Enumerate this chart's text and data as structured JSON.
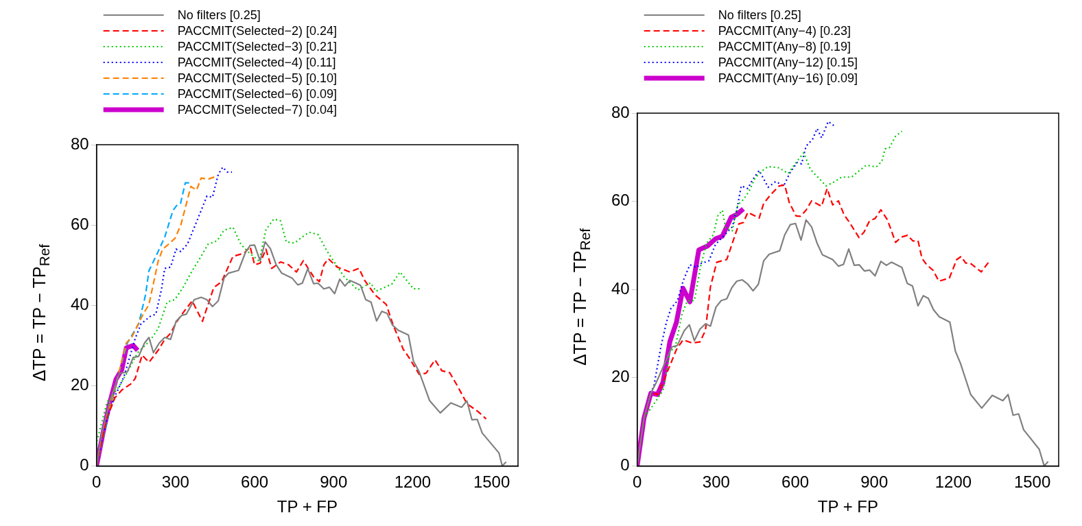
{
  "chart_data": [
    {
      "type": "line",
      "xlabel": "TP + FP",
      "ylabel": "ΔTP = TP − TP$_{Ref}$",
      "xlim": [
        0,
        1600
      ],
      "xticks": [
        0,
        300,
        600,
        900,
        1200,
        1500
      ],
      "ylim": [
        0,
        80
      ],
      "yticks": [
        0,
        20,
        40,
        60,
        80
      ],
      "grid": false,
      "legend": "top left",
      "series": [
        {
          "name": "No filters [0.25]",
          "color": "#808080",
          "line_style": "solid",
          "x": [
            0,
            20,
            50,
            86,
            117,
            139,
            160,
            182,
            199,
            216,
            238,
            259,
            281,
            302,
            324,
            341,
            371,
            397,
            419,
            440,
            462,
            484,
            501,
            539,
            565,
            583,
            600,
            621,
            640,
            660,
            682,
            703,
            742,
            764,
            781,
            802,
            824,
            841,
            863,
            884,
            904,
            923,
            943,
            962,
            983,
            1002,
            1022,
            1042,
            1063,
            1083,
            1103,
            1123,
            1145,
            1184,
            1203,
            1225,
            1264,
            1305,
            1345,
            1386,
            1406,
            1425,
            1445,
            1464,
            1528,
            1540,
            1555
          ],
          "values": [
            0,
            8,
            16,
            23,
            23.4,
            27,
            27.3,
            30.6,
            32,
            28.2,
            30.6,
            32,
            31.5,
            36,
            37.5,
            37.8,
            41.4,
            42,
            41.4,
            39.7,
            41.1,
            46.8,
            48,
            48.7,
            53.1,
            54.9,
            55,
            51.1,
            55.8,
            54.1,
            50.1,
            48,
            46.8,
            45.1,
            45.5,
            49.1,
            45.4,
            45.5,
            44.1,
            44.5,
            42.9,
            46.5,
            44.8,
            46.2,
            45.6,
            45,
            41.4,
            40.8,
            36.1,
            38.5,
            38,
            35.1,
            33.8,
            32.6,
            26.1,
            23.4,
            16.3,
            13.2,
            15.7,
            14.6,
            16.2,
            11.5,
            11.6,
            8.2,
            3.2,
            0,
            1
          ]
        },
        {
          "name": "PACCMIT(Selected−2) [0.24]",
          "color": "#ff0000",
          "line_style": "dashed",
          "x": [
            0,
            40,
            70,
            96,
            130,
            147,
            173,
            199,
            234,
            259,
            281,
            302,
            328,
            363,
            402,
            445,
            475,
            518,
            561,
            583,
            600,
            621,
            643,
            665,
            699,
            729,
            759,
            785,
            824,
            846,
            863,
            880,
            914,
            962,
            996,
            1018,
            1057,
            1100,
            1126,
            1164,
            1186,
            1225,
            1251,
            1285,
            1311,
            1341,
            1371,
            1406,
            1449,
            1479
          ],
          "values": [
            0,
            12,
            17,
            18.9,
            20.4,
            21.8,
            27.6,
            25.8,
            28.8,
            31.5,
            33,
            35.7,
            38.1,
            41.1,
            36,
            44.4,
            45.9,
            52.2,
            53,
            54.6,
            50.1,
            50.5,
            54,
            49.2,
            50.8,
            50.1,
            48.3,
            51.1,
            47.1,
            45.9,
            50.1,
            51.6,
            49.5,
            48.3,
            49.2,
            46.2,
            42.6,
            40.2,
            35.1,
            29.1,
            27,
            22.8,
            23.1,
            26.4,
            23.7,
            23.2,
            19.8,
            15.5,
            13.5,
            11.7
          ]
        },
        {
          "name": "PACCMIT(Selected−3) [0.21]",
          "color": "#00cc00",
          "line_style": "dotted",
          "x": [
            0,
            1,
            40,
            86,
            117,
            156,
            203,
            234,
            268,
            297,
            328,
            363,
            397,
            423,
            458,
            484,
            518,
            548,
            574,
            617,
            643,
            673,
            699,
            720,
            751,
            781,
            807,
            841,
            876,
            897,
            940,
            992,
            1040,
            1061,
            1121,
            1152,
            1203,
            1229
          ],
          "values": [
            0,
            6,
            15.9,
            19.8,
            23.4,
            28.2,
            31.2,
            34.2,
            40.8,
            41.4,
            44.4,
            48.6,
            52.2,
            55.2,
            56.1,
            58.7,
            59.4,
            55.2,
            53.4,
            51,
            58.8,
            61.5,
            61,
            55.8,
            55.5,
            57,
            58.2,
            57.6,
            53.4,
            51.3,
            47.1,
            43.8,
            45.6,
            43.5,
            45.3,
            48.3,
            44.1,
            44.1
          ]
        },
        {
          "name": "PACCMIT(Selected−4) [0.11]",
          "color": "#0000ff",
          "line_style": "dotted",
          "x": [
            0,
            40,
            70,
            104,
            147,
            169,
            203,
            225,
            246,
            259,
            281,
            302,
            319,
            345,
            371,
            397,
            419,
            440,
            462,
            479,
            496,
            514
          ],
          "values": [
            0,
            12,
            17.4,
            22.2,
            31.8,
            35.4,
            37.2,
            37.8,
            43.8,
            49.2,
            49.5,
            54,
            53.4,
            55.2,
            59.4,
            63.6,
            67.2,
            66.9,
            72.6,
            74.4,
            73.2,
            73.2
          ]
        },
        {
          "name": "PACCMIT(Selected−5) [0.10]",
          "color": "#ff8000",
          "line_style": "dashed",
          "x": [
            0,
            40,
            80,
            113,
            134,
            177,
            199,
            234,
            251,
            268,
            298,
            320,
            358,
            380,
            397,
            423,
            449
          ],
          "values": [
            0,
            12,
            22,
            30.6,
            32.1,
            37.8,
            40.2,
            51,
            54,
            54.9,
            56.7,
            60,
            69.6,
            68.7,
            71.7,
            71.4,
            72
          ]
        },
        {
          "name": "PACCMIT(Selected−6) [0.09]",
          "color": "#00aaff",
          "line_style": "dashed",
          "x": [
            0,
            80,
            117,
            160,
            186,
            199,
            234,
            259,
            290,
            307,
            319,
            337,
            354
          ],
          "values": [
            0,
            22,
            30.6,
            35.4,
            42.6,
            48.6,
            53.4,
            57,
            63.6,
            65.1,
            65.4,
            70.5,
            70.5
          ]
        },
        {
          "name": "PACCMIT(Selected−7) [0.04]",
          "color": "#cc00cc",
          "line_style": "solid",
          "x": [
            0,
            27,
            52,
            74,
            96,
            113,
            139,
            156
          ],
          "values": [
            0,
            9,
            16.2,
            21.6,
            24,
            29.4,
            30,
            28.8
          ]
        }
      ]
    },
    {
      "type": "line",
      "xlabel": "TP + FP",
      "ylabel": "ΔTP = TP − TP$_{Ref}$",
      "xlim": [
        0,
        1600
      ],
      "xticks": [
        0,
        300,
        600,
        900,
        1200,
        1500
      ],
      "ylim": [
        0,
        80
      ],
      "yticks": [
        0,
        20,
        40,
        60,
        80
      ],
      "grid": false,
      "legend": "top left",
      "series": [
        {
          "name": "No filters [0.25]",
          "color": "#808080",
          "line_style": "solid",
          "x": [
            0,
            26,
            52,
            73,
            132,
            152,
            179,
            198,
            217,
            238,
            259,
            278,
            299,
            319,
            340,
            359,
            378,
            399,
            420,
            440,
            460,
            480,
            501,
            541,
            560,
            581,
            601,
            622,
            641,
            662,
            683,
            703,
            742,
            764,
            783,
            803,
            824,
            843,
            863,
            883,
            903,
            925,
            946,
            965,
            1005,
            1025,
            1045,
            1066,
            1086,
            1105,
            1125,
            1147,
            1187,
            1208,
            1227,
            1266,
            1308,
            1348,
            1388,
            1408,
            1427,
            1448,
            1467,
            1526,
            1545,
            1560
          ],
          "values": [
            0,
            10.9,
            16.5,
            19,
            27,
            27.3,
            30.7,
            32,
            28.4,
            31,
            32.2,
            31.7,
            36,
            37.5,
            37.9,
            40.4,
            41.9,
            42.2,
            41.2,
            39.7,
            41.2,
            46.5,
            48,
            48.8,
            52.4,
            54.7,
            55,
            51.2,
            55.8,
            54.2,
            50.5,
            47.9,
            46.8,
            45.3,
            45.7,
            49.2,
            45.5,
            45.6,
            44.2,
            44.4,
            43.1,
            46.4,
            45.5,
            46.2,
            45,
            41.4,
            40.8,
            36.3,
            38.6,
            38,
            35.4,
            33.8,
            32.6,
            26,
            23.3,
            16.2,
            13.1,
            16,
            14.8,
            16.2,
            11.5,
            11.8,
            8.2,
            3.8,
            0,
            1
          ]
        },
        {
          "name": "PACCMIT(Any−4) [0.23]",
          "color": "#ff0000",
          "line_style": "dashed",
          "x": [
            0,
            26,
            52,
            77,
            98,
            119,
            149,
            174,
            208,
            238,
            259,
            278,
            302,
            340,
            361,
            386,
            403,
            420,
            463,
            480,
            505,
            539,
            560,
            577,
            603,
            619,
            641,
            662,
            700,
            721,
            742,
            764,
            785,
            806,
            842,
            861,
            882,
            903,
            925,
            950,
            981,
            1003,
            1026,
            1047,
            1066,
            1081,
            1098,
            1124,
            1145,
            1185,
            1213,
            1230,
            1247,
            1264,
            1306,
            1334
          ],
          "values": [
            0,
            10.9,
            16.5,
            16.2,
            19,
            22,
            26.4,
            28.6,
            27.9,
            28.1,
            30.7,
            40.6,
            46.2,
            46.8,
            50.5,
            54.9,
            55.2,
            57.5,
            56.2,
            59.5,
            61.4,
            63.5,
            63.7,
            59.8,
            56.7,
            56.6,
            58,
            60.1,
            58.9,
            62.9,
            59.2,
            60.1,
            57,
            55.2,
            51.8,
            53,
            55.6,
            56.1,
            58.1,
            55.8,
            50.7,
            51.9,
            52.3,
            51,
            51.1,
            47.1,
            45.7,
            44.3,
            41.9,
            42.6,
            46.8,
            47.5,
            46,
            46,
            44,
            46.2
          ]
        },
        {
          "name": "PACCMIT(Any−8) [0.19]",
          "color": "#00cc00",
          "line_style": "dotted",
          "x": [
            0,
            26,
            56,
            98,
            124,
            145,
            170,
            191,
            217,
            242,
            263,
            289,
            306,
            323,
            336,
            361,
            382,
            403,
            425,
            446,
            467,
            497,
            539,
            573,
            607,
            632,
            658,
            687,
            717,
            751,
            776,
            814,
            844,
            870,
            908,
            929,
            941,
            958,
            980,
            1005
          ],
          "values": [
            0,
            10.9,
            13.4,
            17.1,
            25.8,
            27.1,
            34.4,
            37.5,
            37.5,
            45.6,
            50.5,
            52.4,
            56.7,
            58,
            53.9,
            53.3,
            59.2,
            60.4,
            62.3,
            65.1,
            66.6,
            67.9,
            67.6,
            66.3,
            69.1,
            71,
            67.2,
            65.4,
            63.5,
            64.5,
            65.5,
            65.5,
            67,
            68.2,
            67.8,
            69.1,
            71.9,
            72.2,
            74.7,
            75.9
          ]
        },
        {
          "name": "PACCMIT(Any−12) [0.15]",
          "color": "#0000ff",
          "line_style": "dotted",
          "x": [
            0,
            26,
            52,
            64,
            90,
            111,
            128,
            153,
            174,
            200,
            225,
            242,
            272,
            297,
            327,
            361,
            378,
            395,
            420,
            437,
            463,
            497,
            526,
            556,
            581,
            607,
            624,
            641,
            666,
            683,
            700,
            725,
            746
          ],
          "values": [
            0,
            10.9,
            16.5,
            18.3,
            27,
            32.6,
            35.7,
            37.5,
            41.9,
            45.6,
            45,
            45.9,
            46.5,
            50.2,
            52.1,
            54.2,
            58,
            63.5,
            62.9,
            64.8,
            67,
            63.2,
            64.5,
            63.5,
            66.6,
            68.8,
            68.5,
            72.5,
            74.1,
            76.5,
            74.4,
            78.1,
            77.2
          ]
        },
        {
          "name": "PACCMIT(Any−16) [0.09]",
          "color": "#cc00cc",
          "line_style": "solid",
          "x": [
            0,
            26,
            52,
            77,
            98,
            124,
            149,
            174,
            200,
            234,
            268,
            297,
            323,
            357,
            378,
            403
          ],
          "values": [
            0,
            10.9,
            16.5,
            16.2,
            19,
            28.2,
            32.6,
            40.3,
            37.2,
            49,
            49.9,
            51.5,
            52.1,
            56.4,
            57,
            58.3
          ]
        }
      ]
    }
  ]
}
